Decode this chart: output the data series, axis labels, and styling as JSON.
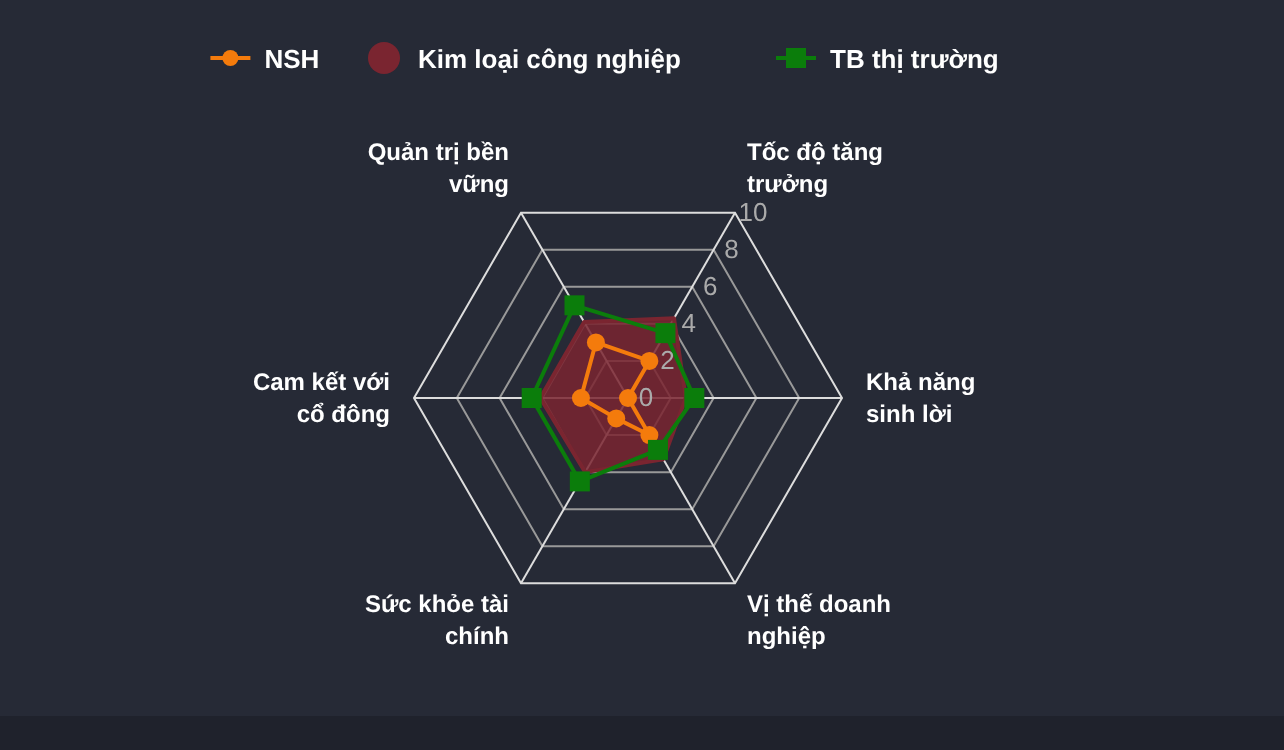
{
  "chart_data": {
    "type": "radar",
    "categories": [
      "Tốc độ tăng trưởng",
      "Khả năng sinh lời",
      "Vị thế doanh nghiệp",
      "Sức khỏe tài chính",
      "Cam kết với cổ đông",
      "Quản trị bền vững"
    ],
    "ylim": [
      0,
      10
    ],
    "yticks": [
      0,
      2,
      4,
      6,
      8,
      10
    ],
    "legend": "top",
    "series": [
      {
        "name": "NSH",
        "color": "#f47b0c",
        "values": [
          2,
          0,
          2,
          1.1,
          2.2,
          3
        ],
        "marker": "circle"
      },
      {
        "name": "Kim loại công nghiệp",
        "color": "#7a2530",
        "type": "area",
        "values": [
          4.3,
          2.7,
          3.3,
          4,
          4.1,
          4.1
        ],
        "marker": "none"
      },
      {
        "name": "TB thị trường",
        "color": "#0b7d0b",
        "values": [
          3.5,
          3.1,
          2.8,
          4.5,
          4.5,
          5
        ],
        "marker": "square"
      }
    ]
  }
}
